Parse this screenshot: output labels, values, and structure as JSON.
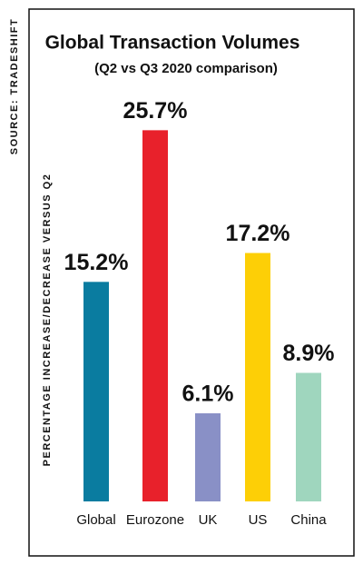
{
  "chart_data": {
    "type": "bar",
    "title": "Global Transaction Volumes",
    "subtitle": "(Q2 vs Q3 2020 comparison)",
    "source": "SOURCE: TRADESHIFT",
    "y_label": "PERCENTAGE INCREASE/DECREASE VERSUS Q2",
    "categories": [
      "Global",
      "Eurozone",
      "UK",
      "US",
      "China"
    ],
    "values": [
      15.2,
      25.7,
      6.1,
      17.2,
      8.9
    ],
    "value_labels": [
      "15.2%",
      "25.7%",
      "6.1%",
      "17.2%",
      "8.9%"
    ],
    "colors": [
      "#0a7ca0",
      "#e8212b",
      "#8990c6",
      "#fdcf06",
      "#9fd6be"
    ]
  }
}
